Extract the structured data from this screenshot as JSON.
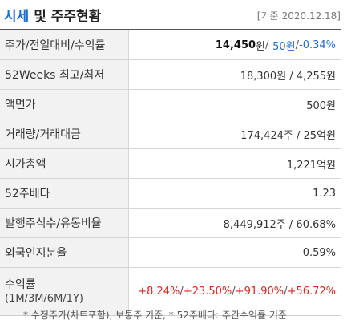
{
  "header": {
    "title_accent": "시세",
    "title_rest": " 및 주주현황",
    "date": "[기준:2020.12.18]"
  },
  "rows": {
    "price": {
      "label": "주가/전일대비/수익률",
      "price": "14,450",
      "price_unit": "원",
      "sep1": " / ",
      "change": "-50원",
      "sep2": " / ",
      "rate": "-0.34%"
    },
    "weeks52": {
      "label": "52Weeks 최고/최저",
      "value": "18,300원 / 4,255원"
    },
    "face": {
      "label": "액면가",
      "value": "500원"
    },
    "volume": {
      "label": "거래량/거래대금",
      "value": "174,424주 / 25억원"
    },
    "marketcap": {
      "label": "시가총액",
      "value": "1,221억원"
    },
    "beta": {
      "label": "52주베타",
      "value": "1.23"
    },
    "shares": {
      "label": "발행주식수/유동비율",
      "value": "8,449,912주 / 60.68%"
    },
    "foreign": {
      "label": "외국인지분율",
      "value": "0.59%"
    },
    "returns": {
      "label": "수익률",
      "sublabel": "(1M/3M/6M/1Y)",
      "m1": "+8.24%",
      "m3": "+23.50%",
      "m6": "+91.90%",
      "y1": "+56.72%",
      "sep": "/"
    }
  },
  "footnote": "* 수정주가(차트포함), 보통주 기준, * 52주베타: 주간수익률 기준",
  "colors": {
    "accent_blue": "#1f6fd1",
    "positive_red": "#e0231b",
    "label_bg": "#f2f2f2"
  }
}
